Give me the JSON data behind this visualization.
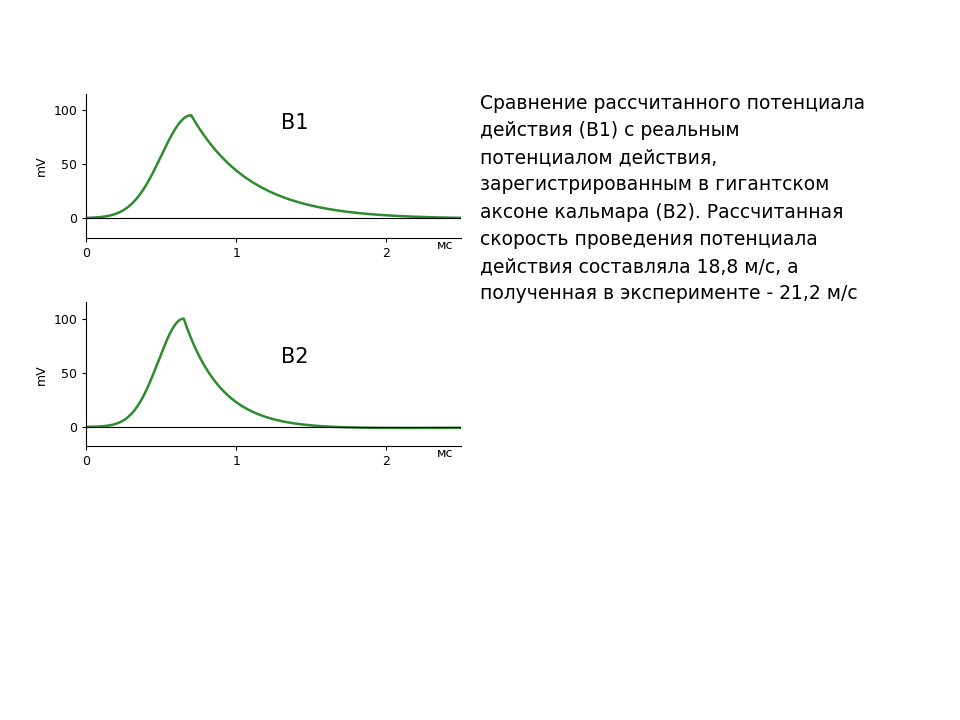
{
  "curve_color": "#2e8b2e",
  "line_width": 1.8,
  "background_color": "#ffffff",
  "label_B1": "B1",
  "label_B2": "B2",
  "xlabel": "мс",
  "ylabel": "mV",
  "xlim": [
    0,
    2.5
  ],
  "xticks": [
    0,
    1,
    2
  ],
  "xticklabels": [
    "0",
    "1",
    "2"
  ],
  "yticks": [
    0,
    50,
    100
  ],
  "yticklabels": [
    "0",
    "50",
    "100"
  ],
  "ylim": [
    -18,
    115
  ],
  "annotation_text": "Сравнение рассчитанного потенциала\nдействия (B1) с реальным\nпотенциалом действия,\nзарегистрированным в гигантском\nаксоне кальмара (B2). Рассчитанная\nскорость проведения потенциала\nдействия составляла 18,8 м/с, а\nполученная в эксперименте - 21,2 м/с",
  "annotation_fontsize": 13.5
}
